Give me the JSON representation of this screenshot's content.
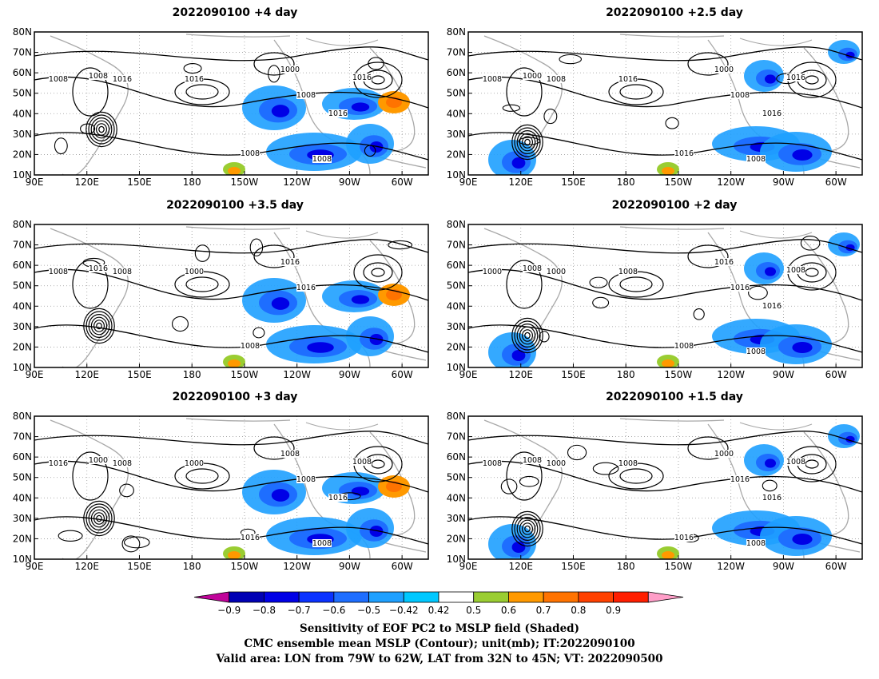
{
  "panels": [
    {
      "title": "2022090100  +4 day",
      "contour_labels": [
        "1008",
        "1008",
        "1016",
        "1016",
        "1008",
        "1000",
        "1008",
        "1016",
        "1016",
        "1008"
      ]
    },
    {
      "title": "2022090100  +2.5 day",
      "contour_labels": [
        "1008",
        "1000",
        "1008",
        "1016",
        "1016",
        "1000",
        "1008",
        "1016",
        "1016",
        "1008"
      ]
    },
    {
      "title": "2022090100  +3.5 day",
      "contour_labels": [
        "1008",
        "1016",
        "1008",
        "1000",
        "1008",
        "1016",
        "1016"
      ]
    },
    {
      "title": "2022090100  +2 day",
      "contour_labels": [
        "1000",
        "1008",
        "1000",
        "1008",
        "1008",
        "1016",
        "1016",
        "1016",
        "1008",
        "1008"
      ]
    },
    {
      "title": "2022090100  +3 day",
      "contour_labels": [
        "1016",
        "1000",
        "1008",
        "1000",
        "1016",
        "1008",
        "1008",
        "1016",
        "1008",
        "1008"
      ]
    },
    {
      "title": "2022090100  +1.5 day",
      "contour_labels": [
        "1008",
        "1008",
        "1000",
        "1008",
        "1016",
        "1000",
        "1016",
        "1016",
        "1008",
        "1008"
      ]
    }
  ],
  "map_axes": {
    "lon_labels": [
      "90E",
      "120E",
      "150E",
      "180",
      "150W",
      "120W",
      "90W",
      "60W"
    ],
    "lat_labels": [
      "80N",
      "70N",
      "60N",
      "50N",
      "40N",
      "30N",
      "20N",
      "10N"
    ]
  },
  "colorbar": {
    "tick_labels": [
      "−0.9",
      "−0.8",
      "−0.7",
      "−0.6",
      "−0.5",
      "−0.42",
      "0.42",
      "0.5",
      "0.6",
      "0.7",
      "0.8",
      "0.9"
    ],
    "colors": [
      "#c0049a",
      "#0000b4",
      "#0000e6",
      "#0a32ff",
      "#1e6eff",
      "#1ea0ff",
      "#00c8ff",
      "#ffffff",
      "#9acd32",
      "#ff9900",
      "#ff7300",
      "#ff4100",
      "#ff1e00",
      "#ff9ec8"
    ]
  },
  "caption": [
    "Sensitivity of EOF PC2 to MSLP field (Shaded)",
    "CMC ensemble mean MSLP (Contour); unit(mb); IT:2022090100",
    "Valid area: LON from 79W to 62W, LAT from 32N to 45N; VT: 2022090500"
  ],
  "colors": {
    "contour": "#000000",
    "coastline": "#a8a8a8",
    "grid": "#9a9a9a",
    "negative_shading": "#1e6eff",
    "positive_shading": "#ff9900"
  }
}
